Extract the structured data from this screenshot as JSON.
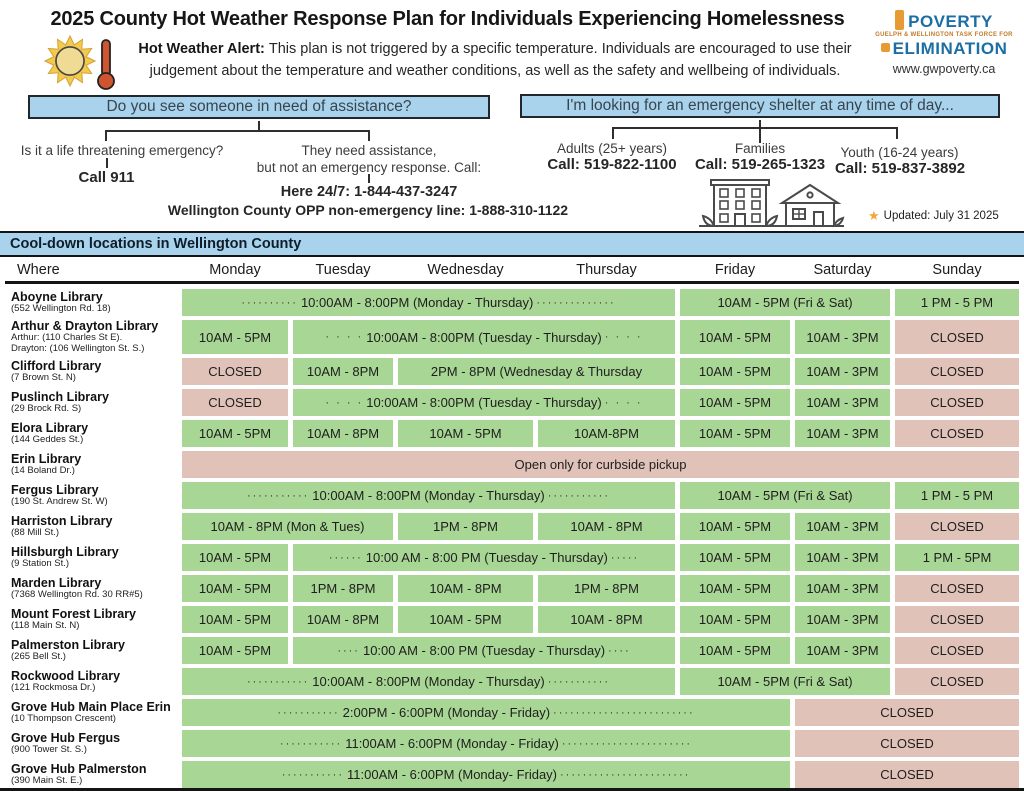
{
  "title": "2025 County Hot Weather Response Plan for Individuals Experiencing Homelessness",
  "alert": {
    "bold": "Hot Weather Alert: ",
    "text": "This plan is not triggered by a specific temperature. Individuals are encouraged to use their judgement about the temperature and weather conditions, as well as the safety and wellbeing of individuals."
  },
  "logo": {
    "word1": "POVERTY",
    "subtitle": "GUELPH & WELLINGTON TASK FORCE FOR",
    "word2": "ELIMINATION",
    "url": "www.gwpoverty.ca"
  },
  "colors": {
    "accent_blue": "#a9d3ec",
    "open_green": "#a8d694",
    "closed_pink": "#e0c2b9",
    "logo_blue": "#1c6ea4",
    "logo_orange": "#e89a33",
    "star_orange": "#f0a63c"
  },
  "flow_left": {
    "box": "Do you see someone in need of assistance?",
    "branch1_question": "Is it a life threatening emergency?",
    "branch1_action": "Call 911",
    "branch2_line1": "They need assistance,",
    "branch2_line2": "but not an emergency response. Call:",
    "branch2_call1": "Here 24/7: 1-844-437-3247",
    "branch2_call2": "Wellington County OPP non-emergency line: 1-888-310-1122"
  },
  "flow_right": {
    "box": "I'm looking for an emergency shelter at any time of day...",
    "branches": [
      {
        "label": "Adults (25+ years)",
        "call": "Call: 519-822-1100"
      },
      {
        "label": "Families",
        "call": "Call: 519-265-1323"
      },
      {
        "label": "Youth (16-24 years)",
        "call": "Call: 519-837-3892"
      }
    ],
    "updated": "Updated: July 31 2025"
  },
  "table": {
    "banner": "Cool-down locations in Wellington County",
    "columns": [
      "Where",
      "Monday",
      "Tuesday",
      "Wednesday",
      "Thursday",
      "Friday",
      "Saturday",
      "Sunday"
    ],
    "rows": [
      {
        "name": "Aboyne Library",
        "addr": [
          "(552 Wellington Rd. 18)"
        ],
        "cells": [
          {
            "s": 4,
            "c": "g",
            "pre": "··········",
            "t": "10:00AM - 8:00PM (Monday - Thursday)",
            "post": "··············"
          },
          {
            "s": 2,
            "c": "g",
            "t": "10AM - 5PM (Fri & Sat)"
          },
          {
            "s": 1,
            "c": "g",
            "t": "1 PM - 5 PM"
          }
        ]
      },
      {
        "name": "Arthur & Drayton Library",
        "addr": [
          "Arthur: (110 Charles St E).",
          "Drayton: (106 Wellington St. S.)"
        ],
        "cells": [
          {
            "s": 1,
            "c": "g",
            "t": "10AM - 5PM"
          },
          {
            "s": 3,
            "c": "g",
            "pre": "· · · ·",
            "t": "10:00AM - 8:00PM (Tuesday - Thursday)",
            "post": "· · · ·"
          },
          {
            "s": 1,
            "c": "g",
            "t": "10AM - 5PM"
          },
          {
            "s": 1,
            "c": "g",
            "t": "10AM - 3PM"
          },
          {
            "s": 1,
            "c": "p",
            "t": "CLOSED"
          }
        ]
      },
      {
        "name": "Clifford Library",
        "addr": [
          "(7 Brown St. N)"
        ],
        "cells": [
          {
            "s": 1,
            "c": "p",
            "t": "CLOSED"
          },
          {
            "s": 1,
            "c": "g",
            "t": "10AM - 8PM"
          },
          {
            "s": 2,
            "c": "g",
            "t": "2PM - 8PM (Wednesday & Thursday"
          },
          {
            "s": 1,
            "c": "g",
            "t": "10AM - 5PM"
          },
          {
            "s": 1,
            "c": "g",
            "t": "10AM - 3PM"
          },
          {
            "s": 1,
            "c": "p",
            "t": "CLOSED"
          }
        ]
      },
      {
        "name": "Puslinch Library",
        "addr": [
          "(29 Brock Rd. S)"
        ],
        "cells": [
          {
            "s": 1,
            "c": "p",
            "t": "CLOSED"
          },
          {
            "s": 3,
            "c": "g",
            "pre": "· · · ·",
            "t": "10:00AM - 8:00PM (Tuesday - Thursday)",
            "post": "· · · ·"
          },
          {
            "s": 1,
            "c": "g",
            "t": "10AM - 5PM"
          },
          {
            "s": 1,
            "c": "g",
            "t": "10AM - 3PM"
          },
          {
            "s": 1,
            "c": "p",
            "t": "CLOSED"
          }
        ]
      },
      {
        "name": "Elora Library",
        "addr": [
          "(144 Geddes St.)"
        ],
        "cells": [
          {
            "s": 1,
            "c": "g",
            "t": "10AM - 5PM"
          },
          {
            "s": 1,
            "c": "g",
            "t": "10AM - 8PM"
          },
          {
            "s": 1,
            "c": "g",
            "t": "10AM - 5PM"
          },
          {
            "s": 1,
            "c": "g",
            "t": "10AM-8PM"
          },
          {
            "s": 1,
            "c": "g",
            "t": "10AM - 5PM"
          },
          {
            "s": 1,
            "c": "g",
            "t": "10AM - 3PM"
          },
          {
            "s": 1,
            "c": "p",
            "t": "CLOSED"
          }
        ]
      },
      {
        "name": "Erin Library",
        "addr": [
          "(14 Boland Dr.)"
        ],
        "cells": [
          {
            "s": 7,
            "c": "p",
            "t": "Open only for curbside pickup"
          }
        ]
      },
      {
        "name": "Fergus Library",
        "addr": [
          "(190 St. Andrew St. W)"
        ],
        "cells": [
          {
            "s": 4,
            "c": "g",
            "pre": "···········",
            "t": "10:00AM - 8:00PM (Monday - Thursday)",
            "post": "···········"
          },
          {
            "s": 2,
            "c": "g",
            "t": "10AM - 5PM (Fri & Sat)"
          },
          {
            "s": 1,
            "c": "g",
            "t": "1 PM - 5 PM"
          }
        ]
      },
      {
        "name": "Harriston Library",
        "addr": [
          "(88 Mill St.)"
        ],
        "cells": [
          {
            "s": 2,
            "c": "g",
            "t": "10AM - 8PM (Mon & Tues)"
          },
          {
            "s": 1,
            "c": "g",
            "t": "1PM - 8PM"
          },
          {
            "s": 1,
            "c": "g",
            "t": "10AM - 8PM"
          },
          {
            "s": 1,
            "c": "g",
            "t": "10AM - 5PM"
          },
          {
            "s": 1,
            "c": "g",
            "t": "10AM - 3PM"
          },
          {
            "s": 1,
            "c": "p",
            "t": "CLOSED"
          }
        ]
      },
      {
        "name": "Hillsburgh Library",
        "addr": [
          "(9 Station St.)"
        ],
        "cells": [
          {
            "s": 1,
            "c": "g",
            "t": "10AM - 5PM"
          },
          {
            "s": 3,
            "c": "g",
            "pre": "······",
            "t": "10:00 AM - 8:00 PM (Tuesday - Thursday)",
            "post": "·····"
          },
          {
            "s": 1,
            "c": "g",
            "t": "10AM - 5PM"
          },
          {
            "s": 1,
            "c": "g",
            "t": "10AM - 3PM"
          },
          {
            "s": 1,
            "c": "g",
            "t": "1 PM - 5PM"
          }
        ]
      },
      {
        "name": "Marden Library",
        "addr": [
          "(7368 Wellington Rd. 30 RR#5)"
        ],
        "cells": [
          {
            "s": 1,
            "c": "g",
            "t": "10AM - 5PM"
          },
          {
            "s": 1,
            "c": "g",
            "t": "1PM - 8PM"
          },
          {
            "s": 1,
            "c": "g",
            "t": "10AM - 8PM"
          },
          {
            "s": 1,
            "c": "g",
            "t": "1PM - 8PM"
          },
          {
            "s": 1,
            "c": "g",
            "t": "10AM - 5PM"
          },
          {
            "s": 1,
            "c": "g",
            "t": "10AM - 3PM"
          },
          {
            "s": 1,
            "c": "p",
            "t": "CLOSED"
          }
        ]
      },
      {
        "name": "Mount Forest Library",
        "addr": [
          "(118 Main St. N)"
        ],
        "cells": [
          {
            "s": 1,
            "c": "g",
            "t": "10AM - 5PM"
          },
          {
            "s": 1,
            "c": "g",
            "t": "10AM - 8PM"
          },
          {
            "s": 1,
            "c": "g",
            "t": "10AM - 5PM"
          },
          {
            "s": 1,
            "c": "g",
            "t": "10AM - 8PM"
          },
          {
            "s": 1,
            "c": "g",
            "t": "10AM - 5PM"
          },
          {
            "s": 1,
            "c": "g",
            "t": "10AM - 3PM"
          },
          {
            "s": 1,
            "c": "p",
            "t": "CLOSED"
          }
        ]
      },
      {
        "name": "Palmerston Library",
        "addr": [
          "(265 Bell St.)"
        ],
        "cells": [
          {
            "s": 1,
            "c": "g",
            "t": "10AM - 5PM"
          },
          {
            "s": 3,
            "c": "g",
            "pre": "····",
            "t": "10:00 AM - 8:00 PM (Tuesday - Thursday)",
            "post": "····"
          },
          {
            "s": 1,
            "c": "g",
            "t": "10AM - 5PM"
          },
          {
            "s": 1,
            "c": "g",
            "t": "10AM - 3PM"
          },
          {
            "s": 1,
            "c": "p",
            "t": "CLOSED"
          }
        ]
      },
      {
        "name": "Rockwood Library",
        "addr": [
          "(121 Rockmosa Dr.)"
        ],
        "cells": [
          {
            "s": 4,
            "c": "g",
            "pre": "···········",
            "t": "10:00AM - 8:00PM (Monday - Thursday)",
            "post": "···········"
          },
          {
            "s": 2,
            "c": "g",
            "t": "10AM - 5PM (Fri & Sat)"
          },
          {
            "s": 1,
            "c": "p",
            "t": "CLOSED"
          }
        ]
      },
      {
        "name": "Grove Hub Main Place Erin",
        "addr": [
          "(10 Thompson Crescent)"
        ],
        "cells": [
          {
            "s": 5,
            "c": "g",
            "pre": "···········",
            "t": "2:00PM - 6:00PM (Monday - Friday)",
            "post": "·························"
          },
          {
            "s": 2,
            "c": "p",
            "t": "CLOSED"
          }
        ]
      },
      {
        "name": "Grove Hub Fergus",
        "addr": [
          "(900 Tower St. S.)"
        ],
        "cells": [
          {
            "s": 5,
            "c": "g",
            "pre": "···········",
            "t": "11:00AM - 6:00PM (Monday - Friday)",
            "post": "·······················"
          },
          {
            "s": 2,
            "c": "p",
            "t": "CLOSED"
          }
        ]
      },
      {
        "name": "Grove Hub Palmerston",
        "addr": [
          "(390 Main St. E.)"
        ],
        "cells": [
          {
            "s": 5,
            "c": "g",
            "pre": "···········",
            "t": "11:00AM - 6:00PM (Monday- Friday)",
            "post": "·······················"
          },
          {
            "s": 2,
            "c": "p",
            "t": "CLOSED"
          }
        ]
      }
    ]
  }
}
